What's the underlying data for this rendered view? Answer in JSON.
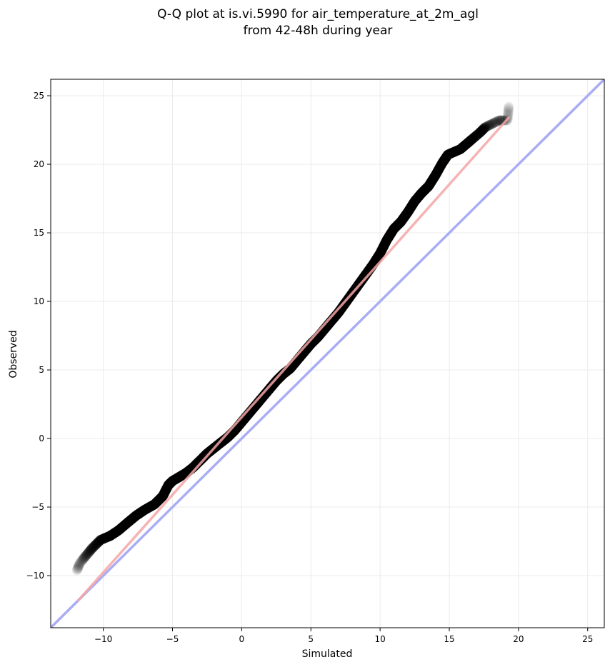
{
  "chart_data": {
    "type": "scatter",
    "title_lines": [
      "Q-Q plot at is.vi.5990 for air_temperature_at_2m_agl",
      "from 42-48h during year"
    ],
    "xlabel": "Simulated",
    "ylabel": "Observed",
    "xlim": [
      -13.8,
      26.2
    ],
    "ylim": [
      -13.8,
      26.2
    ],
    "x_ticks": [
      -10,
      -5,
      0,
      5,
      10,
      15,
      20,
      25
    ],
    "y_ticks": [
      -10,
      -5,
      0,
      5,
      10,
      15,
      20,
      25
    ],
    "x_tick_labels": [
      "−10",
      "−5",
      "0",
      "5",
      "10",
      "15",
      "20",
      "25"
    ],
    "y_tick_labels": [
      "−10",
      "−5",
      "0",
      "5",
      "10",
      "15",
      "20",
      "25"
    ],
    "grid": true,
    "quantile_curve": {
      "name": "",
      "color": "#000000",
      "x": [
        -11.9,
        -11.7,
        -11.3,
        -10.8,
        -10.2,
        -9.5,
        -8.9,
        -8.2,
        -7.6,
        -7.0,
        -6.3,
        -5.7,
        -5.3,
        -5.0,
        -4.5,
        -4.0,
        -3.5,
        -3.0,
        -2.5,
        -2.0,
        -1.5,
        -1.0,
        -0.5,
        0.0,
        0.5,
        1.0,
        1.5,
        2.0,
        2.5,
        3.0,
        3.5,
        4.0,
        4.5,
        5.0,
        5.5,
        6.0,
        6.5,
        7.0,
        7.5,
        8.0,
        8.5,
        9.0,
        9.5,
        10.0,
        10.5,
        11.0,
        11.5,
        12.0,
        12.5,
        13.0,
        13.5,
        14.0,
        14.5,
        14.9,
        15.8,
        16.5,
        17.2,
        17.6,
        18.6,
        19.2,
        19.3
      ],
      "y": [
        -9.6,
        -9.1,
        -8.6,
        -8.0,
        -7.4,
        -7.1,
        -6.7,
        -6.1,
        -5.6,
        -5.2,
        -4.8,
        -4.2,
        -3.4,
        -3.1,
        -2.8,
        -2.5,
        -2.1,
        -1.6,
        -1.1,
        -0.7,
        -0.3,
        0.1,
        0.6,
        1.2,
        1.8,
        2.4,
        3.0,
        3.6,
        4.2,
        4.7,
        5.1,
        5.7,
        6.3,
        6.9,
        7.4,
        8.0,
        8.6,
        9.2,
        9.9,
        10.6,
        11.3,
        12.0,
        12.7,
        13.5,
        14.5,
        15.3,
        15.8,
        16.5,
        17.3,
        17.9,
        18.4,
        19.2,
        20.1,
        20.7,
        21.1,
        21.7,
        22.3,
        22.7,
        23.2,
        23.2,
        24.2
      ]
    },
    "fit_line": {
      "color": "#f4a6a6",
      "x": [
        -11.8,
        19.3
      ],
      "y": [
        -11.8,
        23.4
      ]
    },
    "identity_line": {
      "color": "#a9adf4",
      "x": [
        -13.8,
        26.2
      ],
      "y": [
        -13.8,
        26.2
      ]
    }
  }
}
